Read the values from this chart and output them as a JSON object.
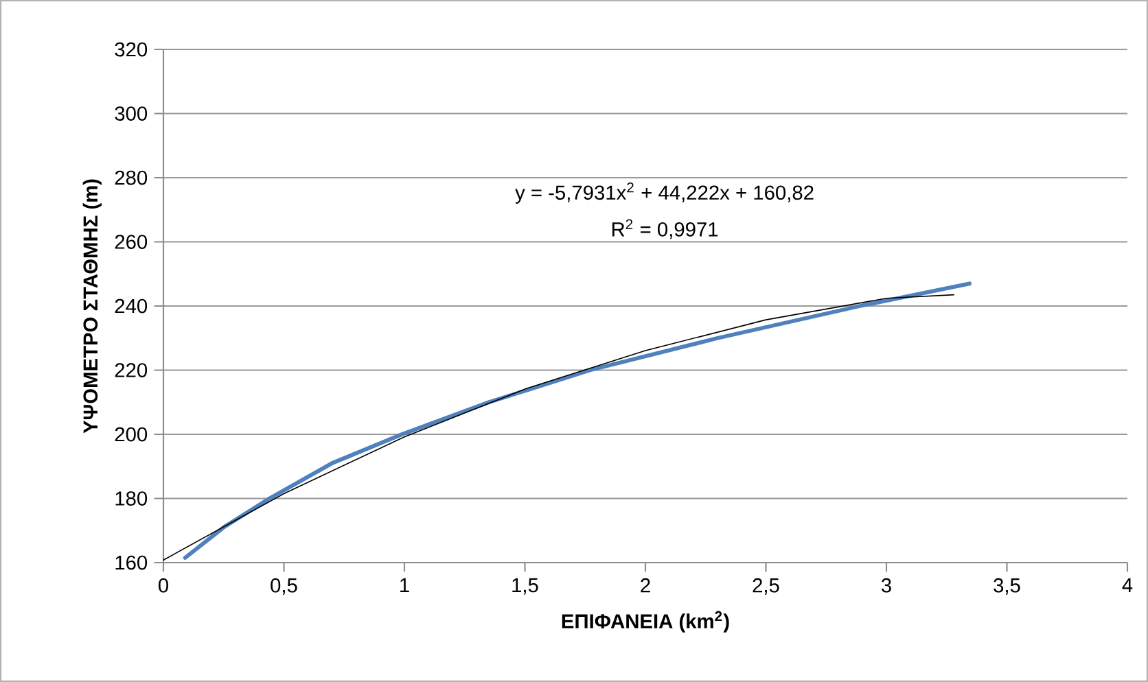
{
  "chart_data": {
    "type": "line",
    "xlabel": "ΕΠΙΦΑΝΕΙΑ (km$^{2}$)",
    "ylabel": "ΥΨΟΜΕΤΡΟ ΣΤΑΘΜΗΣ (m)",
    "annotations": [
      "y = -5,7931x$^{2}$ + 44,222x + 160,82",
      "R$^{2}$ = 0,9971"
    ],
    "xlim": [
      0,
      4
    ],
    "ylim": [
      160,
      320
    ],
    "xticks": [
      0,
      {
        "value": 0.5,
        "label": "0,5"
      },
      1,
      {
        "value": 1.5,
        "label": "1,5"
      },
      2,
      {
        "value": 2.5,
        "label": "2,5"
      },
      3,
      {
        "value": 3.5,
        "label": "3,5"
      },
      4
    ],
    "yticks": [
      160,
      180,
      200,
      220,
      240,
      260,
      280,
      300,
      320
    ],
    "grid": "y",
    "marker": "none",
    "line_style": "solid",
    "series": [
      {
        "color": "#4f81bd",
        "x": [
          0.09,
          0.25,
          0.44,
          0.7,
          0.99,
          1.35,
          1.77,
          2.3,
          2.89,
          3.345
        ],
        "values": [
          161.5,
          171,
          180,
          191,
          200,
          210,
          220,
          230,
          240,
          247
        ]
      },
      {
        "type": "line",
        "color": "#000000",
        "x": [
          0,
          0.5,
          1,
          1.5,
          2,
          2.5,
          3,
          3.28
        ],
        "values": [
          160.8,
          181.5,
          199.2,
          214.1,
          226.1,
          235.7,
          242.4,
          243.5
        ]
      }
    ]
  }
}
